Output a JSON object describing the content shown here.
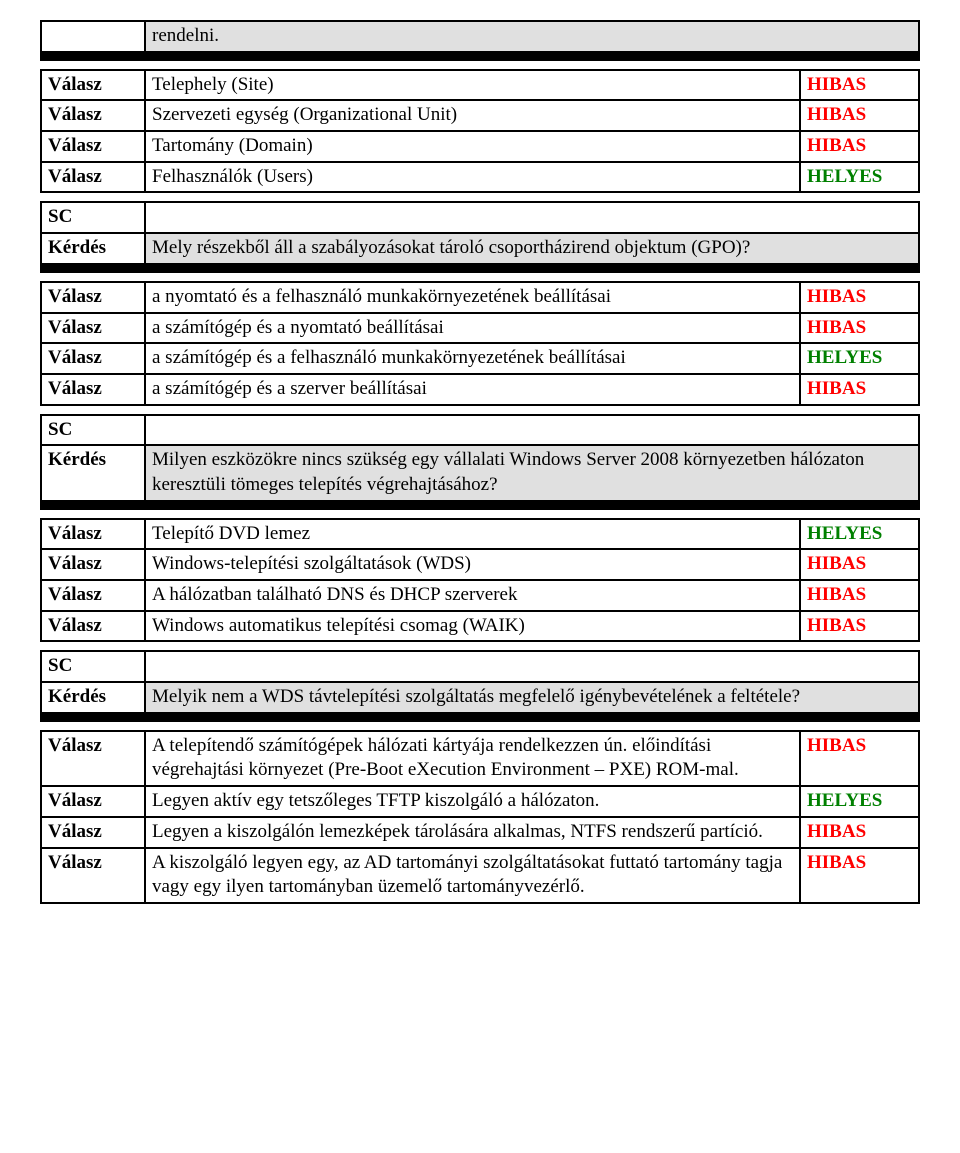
{
  "labels": {
    "valasz": "Válasz",
    "kerdes": "Kérdés",
    "sc": "SC"
  },
  "results": {
    "hibas": "HIBAS",
    "helyes": "HELYES"
  },
  "intro": {
    "rendelni": "rendelni."
  },
  "group1": {
    "a1_text": "Telephely (Site)",
    "a2_text": "Szervezeti egység (Organizational Unit)",
    "a3_text": "Tartomány (Domain)",
    "a4_text": "Felhasználók (Users)"
  },
  "group2": {
    "question": "Mely részekből áll a szabályozásokat tároló csoportházirend objektum (GPO)?",
    "a1_text": "a nyomtató és a felhasználó munkakörnyezetének beállításai",
    "a2_text": "a számítógép és a nyomtató beállításai",
    "a3_text": "a számítógép és a felhasználó munkakörnyezetének beállításai",
    "a4_text": "a számítógép és a szerver beállításai"
  },
  "group3": {
    "question": "Milyen eszközökre nincs szükség egy vállalati Windows Server 2008 környezetben hálózaton keresztüli tömeges telepítés végrehajtásához?",
    "a1_text": "Telepítő DVD lemez",
    "a2_text": "Windows-telepítési szolgáltatások (WDS)",
    "a3_text": "A hálózatban található DNS és DHCP szerverek",
    "a4_text": "Windows automatikus telepítési csomag (WAIK)"
  },
  "group4": {
    "question": "Melyik nem a WDS távtelepítési szolgáltatás megfelelő igénybevételének a feltétele?",
    "a1_text": "A telepítendő számítógépek hálózati kártyája rendelkezzen ún. előindítási végrehajtási környezet (Pre-Boot eXecution Environment – PXE) ROM-mal.",
    "a2_text": "Legyen aktív egy tetszőleges TFTP kiszolgáló a hálózaton.",
    "a3_text": "Legyen a kiszolgálón lemezképek tárolására alkalmas, NTFS rendszerű partíció.",
    "a4_text": "A kiszolgáló legyen egy, az AD tartományi szolgáltatásokat futtató tartomány tagja vagy egy ilyen tartományban üzemelő tartományvezérlő."
  }
}
